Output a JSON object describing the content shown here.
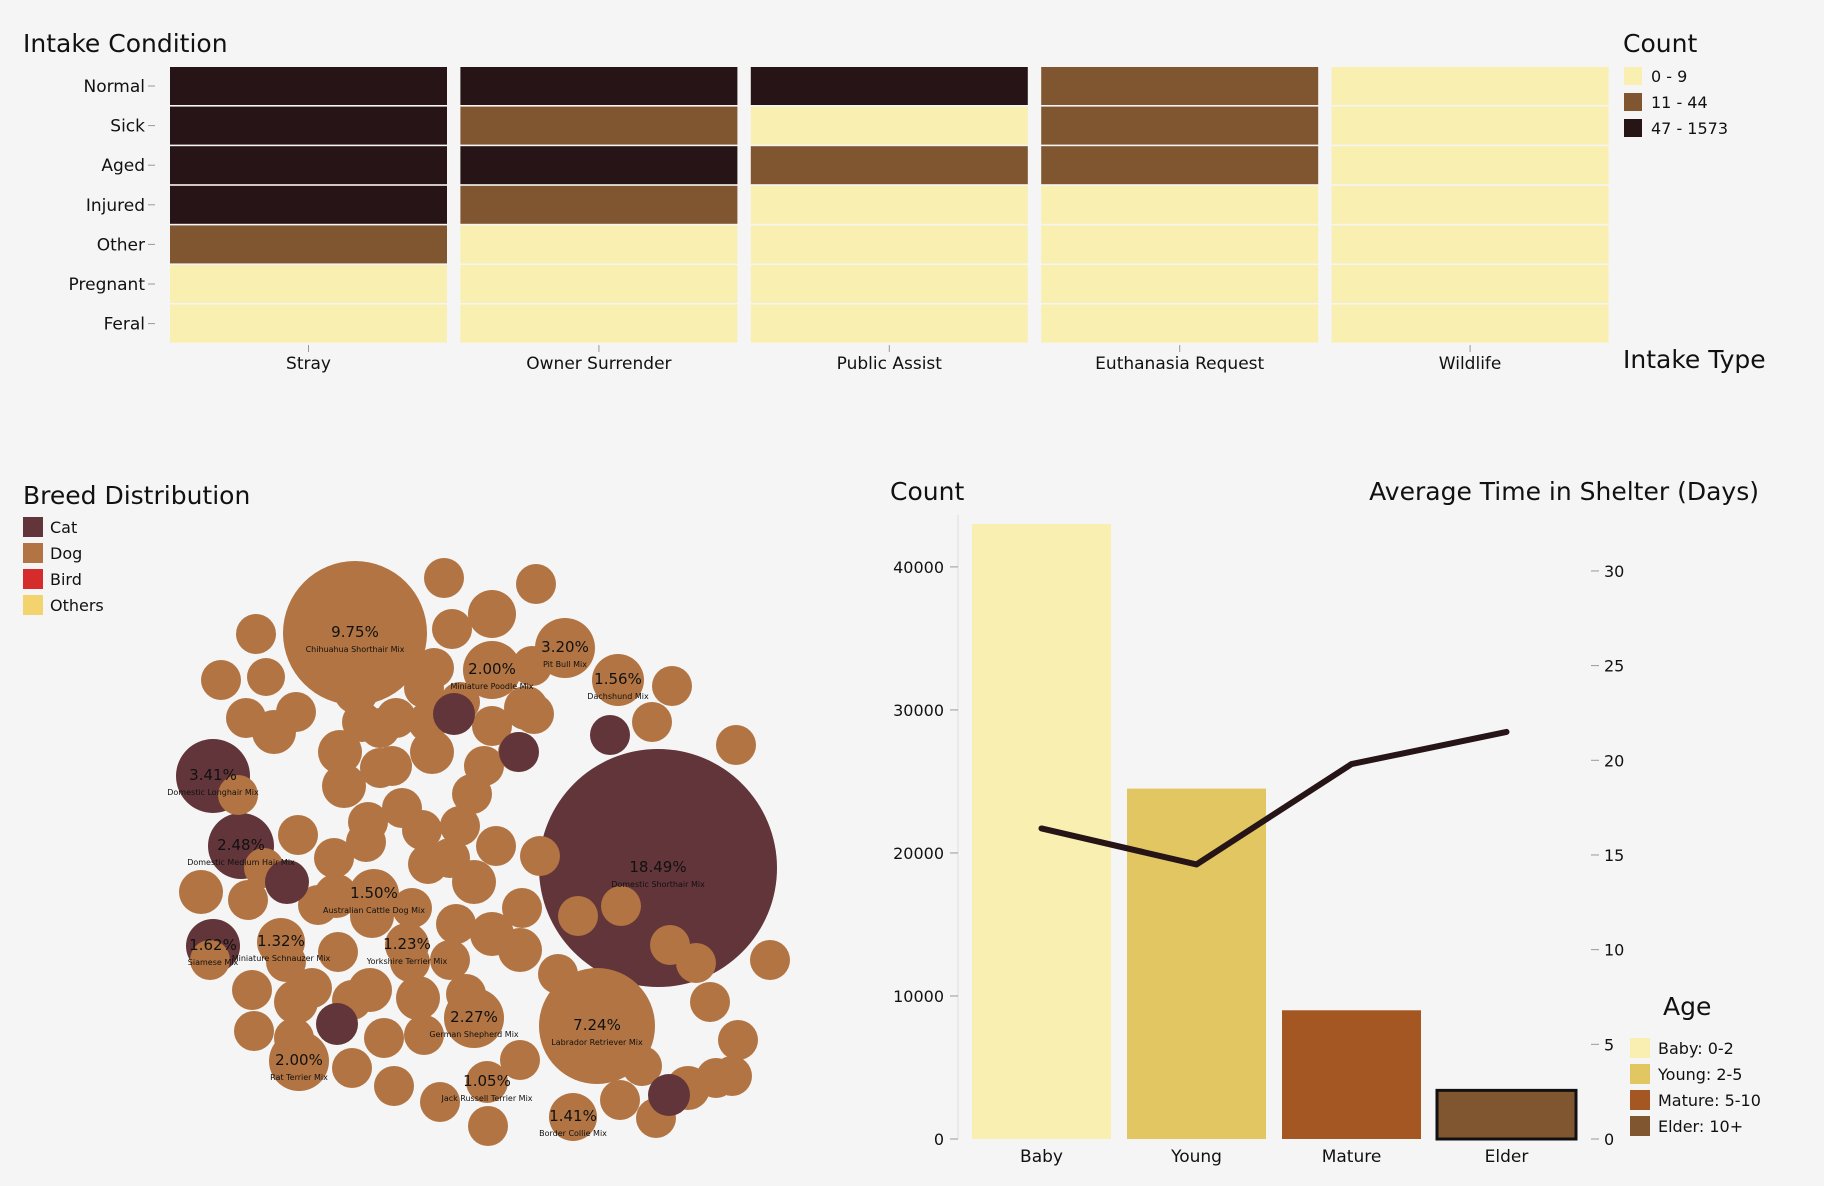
{
  "heatmap": {
    "title": "Intake Condition",
    "x_title": "Intake Type",
    "legend_title": "Count",
    "legend": [
      {
        "label": "0 - 9",
        "color": "#f8efb1"
      },
      {
        "label": "11 - 44",
        "color": "#805631"
      },
      {
        "label": "47 - 1573",
        "color": "#261416"
      }
    ]
  },
  "bubbles": {
    "title": "Breed Distribution",
    "legend": [
      {
        "label": "Cat",
        "color": "#613539"
      },
      {
        "label": "Dog",
        "color": "#b27442"
      },
      {
        "label": "Bird",
        "color": "#d62b2b"
      },
      {
        "label": "Others",
        "color": "#f2d36e"
      }
    ]
  },
  "combo": {
    "left_title": "Count",
    "right_title": "Average Time in Shelter (Days)",
    "legend_title": "Age",
    "legend": [
      {
        "label": "Baby: 0-2",
        "color": "#f8efb1"
      },
      {
        "label": "Young: 2-5",
        "color": "#e2c662"
      },
      {
        "label": "Mature: 5-10",
        "color": "#a45723"
      },
      {
        "label": "Elder: 10+",
        "color": "#805631"
      }
    ]
  },
  "chart_data": [
    {
      "type": "heatmap",
      "title": "Intake Condition",
      "x_categories": [
        "Stray",
        "Owner Surrender",
        "Public Assist",
        "Euthanasia Request",
        "Wildlife"
      ],
      "y_categories": [
        "Normal",
        "Sick",
        "Aged",
        "Injured",
        "Other",
        "Pregnant",
        "Feral"
      ],
      "xlabel": "Intake Type",
      "legend_title": "Count",
      "bins": [
        "0 - 9",
        "11 - 44",
        "47 - 1573"
      ],
      "cells": [
        [
          2,
          2,
          2,
          1,
          0
        ],
        [
          2,
          1,
          0,
          1,
          0
        ],
        [
          2,
          2,
          1,
          1,
          0
        ],
        [
          2,
          1,
          0,
          0,
          0
        ],
        [
          1,
          0,
          0,
          0,
          0
        ],
        [
          0,
          0,
          0,
          0,
          0
        ],
        [
          0,
          0,
          0,
          0,
          0
        ]
      ]
    },
    {
      "type": "bubble",
      "title": "Breed Distribution",
      "series_names": [
        "Cat",
        "Dog",
        "Bird",
        "Others"
      ],
      "labeled_bubbles": [
        {
          "breed": "Domestic Shorthair Mix",
          "percent": "18.49%",
          "group": "Cat"
        },
        {
          "breed": "Chihuahua Shorthair Mix",
          "percent": "9.75%",
          "group": "Dog"
        },
        {
          "breed": "Labrador Retriever Mix",
          "percent": "7.24%",
          "group": "Dog"
        },
        {
          "breed": "Domestic Longhair Mix",
          "percent": "3.41%",
          "group": "Cat"
        },
        {
          "breed": "Pit Bull Mix",
          "percent": "3.20%",
          "group": "Dog"
        },
        {
          "breed": "Domestic Medium Hair Mix",
          "percent": "2.48%",
          "group": "Cat"
        },
        {
          "breed": "German Shepherd Mix",
          "percent": "2.27%",
          "group": "Dog"
        },
        {
          "breed": "Miniature Poodle Mix",
          "percent": "2.00%",
          "group": "Dog"
        },
        {
          "breed": "Rat Terrier Mix",
          "percent": "2.00%",
          "group": "Dog"
        },
        {
          "breed": "Siamese Mix",
          "percent": "1.62%",
          "group": "Cat"
        },
        {
          "breed": "Dachshund Mix",
          "percent": "1.56%",
          "group": "Dog"
        },
        {
          "breed": "Australian Cattle Dog Mix",
          "percent": "1.50%",
          "group": "Dog"
        },
        {
          "breed": "Border Collie Mix",
          "percent": "1.41%",
          "group": "Dog"
        },
        {
          "breed": "Miniature Schnauzer Mix",
          "percent": "1.32%",
          "group": "Dog"
        },
        {
          "breed": "Yorkshire Terrier Mix",
          "percent": "1.23%",
          "group": "Dog"
        },
        {
          "breed": "Jack Russell Terrier Mix",
          "percent": "1.05%",
          "group": "Dog"
        }
      ]
    },
    {
      "type": "bar+line",
      "categories": [
        "Baby",
        "Young",
        "Mature",
        "Elder"
      ],
      "bar_values": [
        43000,
        24500,
        9000,
        3400
      ],
      "line_values": [
        16.4,
        14.5,
        19.8,
        21.5
      ],
      "ylabel_left": "Count",
      "ylabel_right": "Average Time in Shelter (Days)",
      "ylim_left": [
        0,
        43000
      ],
      "ylim_right": [
        0,
        31
      ],
      "yticks_left": [
        0,
        10000,
        20000,
        30000,
        40000
      ],
      "yticks_right": [
        0,
        5,
        10,
        15,
        20,
        25,
        30
      ],
      "legend_title": "Age",
      "highlighted": "Elder"
    }
  ]
}
